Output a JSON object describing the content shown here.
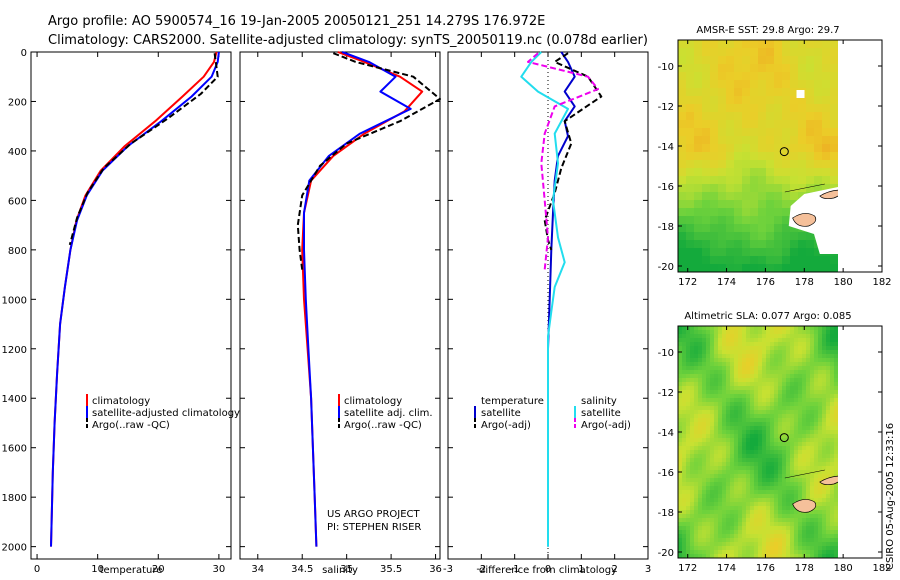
{
  "header": {
    "line1": "Argo profile: AO 5900574_16 19-Jan-2005 20050121_251 14.279S 176.972E",
    "line2": "Climatology: CARS2000. Satellite-adjusted climatology: synTS_20050119.nc (0.078d earlier)"
  },
  "footer": {
    "project": "US ARGO PROJECT",
    "pi": "PI: STEPHEN RISER",
    "credit": "CSIRO 05-Aug-2005 12:33:16"
  },
  "colors": {
    "climatology": "#ff0000",
    "satellite": "#0000ff",
    "argo": "#000000",
    "temp_diff": "#0000cc",
    "sal_sat": "#22ddee",
    "sal_argo": "#ee00ee"
  },
  "chart_data": [
    {
      "type": "line",
      "panel": "temperature",
      "xlabel": "temperature",
      "ylabel": "",
      "xlim": [
        -1,
        32
      ],
      "ylim": [
        2050,
        0
      ],
      "xticks": [
        0,
        10,
        20,
        30
      ],
      "yticks": [
        0,
        200,
        400,
        600,
        800,
        1000,
        1200,
        1400,
        1600,
        1800,
        2000
      ],
      "series": [
        {
          "name": "climatology",
          "style": "solid",
          "color": "#ff0000",
          "x": [
            29.6,
            29.2,
            27.5,
            24.0,
            19.5,
            14.5,
            10.5,
            8.0,
            6.5,
            5.5,
            4.6,
            3.8,
            3.3,
            2.9,
            2.6,
            2.4,
            2.3
          ],
          "y": [
            0,
            40,
            100,
            180,
            280,
            380,
            480,
            580,
            680,
            800,
            950,
            1100,
            1300,
            1500,
            1700,
            1900,
            2000
          ]
        },
        {
          "name": "satellite-adjusted climatology",
          "style": "solid",
          "color": "#0000ff",
          "x": [
            30.0,
            29.8,
            28.8,
            25.5,
            20.5,
            15.0,
            10.8,
            8.2,
            6.6,
            5.5,
            4.6,
            3.8,
            3.3,
            2.9,
            2.6,
            2.4,
            2.3
          ],
          "y": [
            0,
            40,
            100,
            180,
            280,
            380,
            480,
            580,
            680,
            800,
            950,
            1100,
            1300,
            1500,
            1700,
            1900,
            2000
          ]
        },
        {
          "name": "Argo(..raw -QC)",
          "style": "dash",
          "color": "#000000",
          "x": [
            29.3,
            29.5,
            29.8,
            27.0,
            21.5,
            15.5,
            11.0,
            8.3,
            6.6,
            5.4
          ],
          "y": [
            5,
            40,
            100,
            170,
            270,
            370,
            470,
            570,
            670,
            780
          ]
        }
      ],
      "legend": [
        "climatology",
        "satellite-adjusted climatology",
        "Argo(..raw -QC)"
      ]
    },
    {
      "type": "line",
      "panel": "salinity",
      "xlabel": "salinity",
      "xlim": [
        33.8,
        36.05
      ],
      "ylim": [
        2050,
        0
      ],
      "xticks": [
        34,
        34.5,
        35,
        35.5,
        36
      ],
      "series": [
        {
          "name": "climatology",
          "style": "solid",
          "color": "#ff0000",
          "x": [
            34.9,
            35.2,
            35.6,
            35.85,
            35.65,
            35.2,
            34.85,
            34.6,
            34.52,
            34.5,
            34.52,
            34.56,
            34.6,
            34.62,
            34.64,
            34.66
          ],
          "y": [
            0,
            40,
            100,
            160,
            240,
            330,
            420,
            520,
            650,
            800,
            1000,
            1200,
            1400,
            1600,
            1800,
            2000
          ]
        },
        {
          "name": "satellite adj. clim.",
          "style": "solid",
          "color": "#0000ff",
          "x": [
            34.95,
            35.25,
            35.55,
            35.38,
            35.72,
            35.15,
            34.8,
            34.58,
            34.52,
            34.52,
            34.54,
            34.57,
            34.6,
            34.62,
            34.64,
            34.66
          ],
          "y": [
            0,
            40,
            100,
            160,
            230,
            330,
            420,
            520,
            650,
            800,
            1000,
            1200,
            1400,
            1600,
            1800,
            2000
          ]
        },
        {
          "name": "Argo(..raw -QC)",
          "style": "dash",
          "color": "#000000",
          "x": [
            34.85,
            35.1,
            35.75,
            36.05,
            35.6,
            35.0,
            34.7,
            34.5,
            34.45,
            34.47,
            34.5
          ],
          "y": [
            5,
            40,
            100,
            190,
            280,
            370,
            460,
            580,
            700,
            800,
            880
          ]
        }
      ],
      "legend": [
        "climatology",
        "satellite adj. clim.",
        "Argo(..raw -QC)"
      ]
    },
    {
      "type": "line",
      "panel": "difference",
      "xlabel": "difference from climatology",
      "xlim": [
        -3,
        3
      ],
      "ylim": [
        2050,
        0
      ],
      "xticks": [
        -3,
        -2,
        -1,
        0,
        1,
        2,
        3
      ],
      "series": [
        {
          "name": "temperature satellite",
          "style": "solid",
          "color": "#0000cc",
          "x": [
            0.4,
            0.6,
            0.8,
            0.5,
            0.8,
            0.5,
            0.6,
            0.3,
            0.2,
            0.15,
            0.1,
            0.05,
            0.0,
            0.0
          ],
          "y": [
            0,
            40,
            100,
            160,
            220,
            280,
            340,
            420,
            520,
            650,
            800,
            1000,
            1200,
            2000
          ]
        },
        {
          "name": "temperature Argo(-adj)",
          "style": "dash",
          "color": "#000000",
          "x": [
            0.6,
            0.2,
            1.2,
            1.6,
            0.5,
            0.7,
            0.4,
            0.2,
            -0.1,
            0.0,
            0.1
          ],
          "y": [
            5,
            40,
            100,
            180,
            280,
            370,
            470,
            570,
            680,
            760,
            800
          ]
        },
        {
          "name": "salinity satellite",
          "style": "solid",
          "color": "#22ddee",
          "x": [
            -0.2,
            -0.5,
            -0.8,
            -0.3,
            0.6,
            0.2,
            0.3,
            0.15,
            0.3,
            0.5,
            0.2,
            0.1,
            0.0,
            0.0
          ],
          "y": [
            0,
            40,
            100,
            160,
            230,
            330,
            450,
            600,
            750,
            850,
            950,
            1050,
            1150,
            2000
          ]
        },
        {
          "name": "salinity Argo(-adj)",
          "style": "dash",
          "color": "#ee00ee",
          "x": [
            -0.3,
            -0.6,
            1.2,
            1.5,
            0.2,
            -0.1,
            -0.2,
            -0.1,
            0.0,
            -0.1
          ],
          "y": [
            5,
            40,
            100,
            150,
            220,
            330,
            450,
            600,
            750,
            880
          ]
        }
      ],
      "legend_left_title": "temperature",
      "legend_right_title": "salinity",
      "legend": [
        "satellite",
        "Argo(-adj)",
        "satellite",
        "Argo(-adj)"
      ]
    },
    {
      "type": "heatmap",
      "panel": "sst_map",
      "title": "AMSR-E SST: 29.8 Argo: 29.7",
      "xlim": [
        171.5,
        182
      ],
      "ylim": [
        -20.3,
        -8.7
      ],
      "xticks": [
        172,
        174,
        176,
        178,
        180,
        182
      ],
      "yticks": [
        -10,
        -12,
        -14,
        -16,
        -18,
        -20
      ],
      "marker": [
        176.97,
        -14.28
      ]
    },
    {
      "type": "heatmap",
      "panel": "sla_map",
      "title": "Altimetric SLA: 0.077 Argo: 0.085",
      "xlim": [
        171.5,
        182
      ],
      "ylim": [
        -20.3,
        -8.7
      ],
      "xticks": [
        172,
        174,
        176,
        178,
        180,
        182
      ],
      "yticks": [
        -10,
        -12,
        -14,
        -16,
        -18,
        -20
      ],
      "marker": [
        176.97,
        -14.28
      ]
    }
  ]
}
